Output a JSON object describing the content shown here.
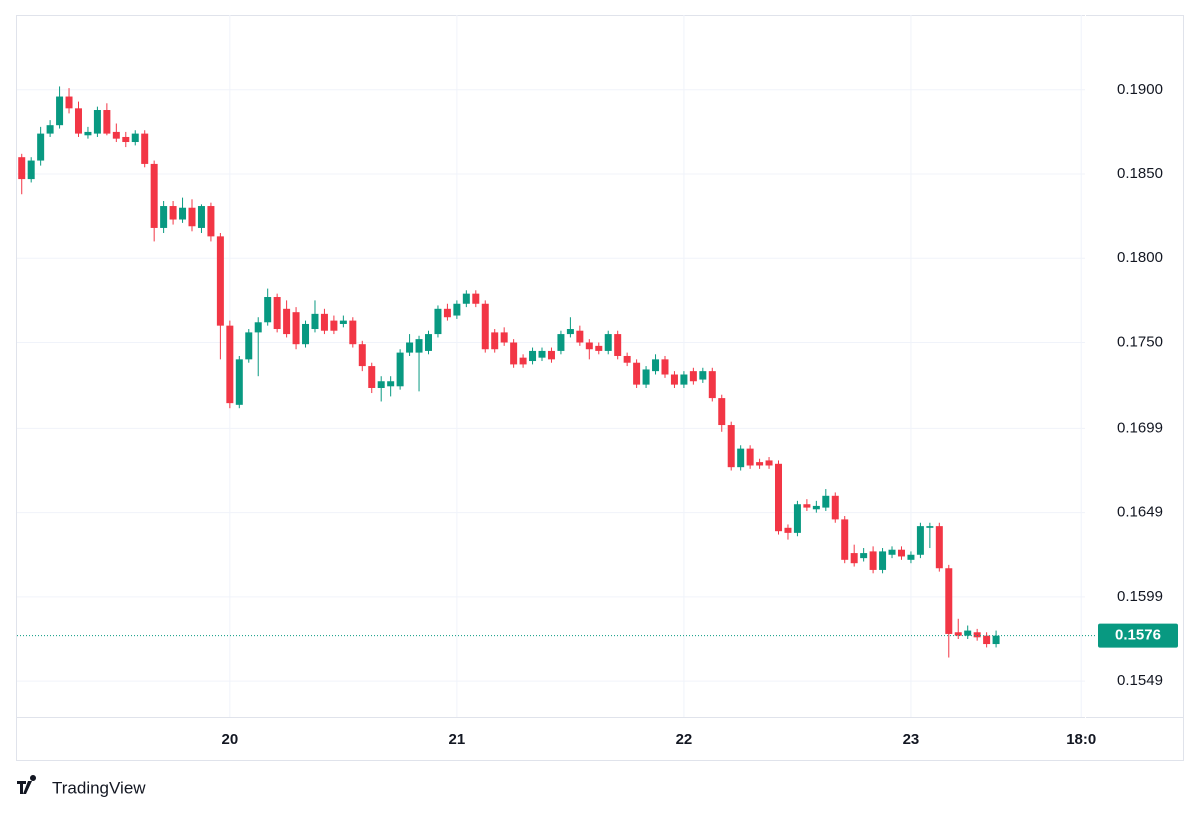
{
  "chart_data": {
    "type": "candlestick",
    "branding": "TradingView",
    "up_color": "#089981",
    "down_color": "#f23645",
    "grid": true,
    "x": [
      2,
      3,
      4,
      5,
      6,
      7,
      8,
      9,
      10,
      11,
      12,
      13,
      14,
      15,
      16,
      17,
      18,
      19,
      20,
      21,
      22,
      23,
      24,
      25,
      26,
      27,
      28,
      29,
      30,
      31,
      32,
      33,
      34,
      35,
      36,
      37,
      38,
      39,
      40,
      41,
      42,
      43,
      44,
      45,
      46,
      47,
      48,
      49,
      50,
      51,
      52,
      53,
      54,
      55,
      56,
      57,
      58,
      59,
      60,
      61,
      62,
      63,
      64,
      65,
      66,
      67,
      68,
      69,
      70,
      71,
      72,
      73,
      74,
      75,
      76,
      77,
      78,
      79,
      80,
      81,
      82,
      83,
      84,
      85,
      86,
      87,
      88,
      89,
      90,
      91,
      92,
      93,
      94,
      95,
      96,
      97,
      98,
      99,
      100,
      101,
      102,
      103,
      104,
      105
    ],
    "open": [
      0.186,
      0.1847,
      0.1858,
      0.1874,
      0.1879,
      0.1896,
      0.1889,
      0.1873,
      0.1874,
      0.1888,
      0.1875,
      0.1872,
      0.1869,
      0.1874,
      0.1856,
      0.1818,
      0.1831,
      0.1823,
      0.183,
      0.1818,
      0.1831,
      0.1813,
      0.176,
      0.1713,
      0.174,
      0.1756,
      0.1762,
      0.1777,
      0.177,
      0.1768,
      0.1749,
      0.1758,
      0.1767,
      0.1763,
      0.1761,
      0.1763,
      0.1749,
      0.1736,
      0.1723,
      0.1724,
      0.1724,
      0.1744,
      0.1744,
      0.1745,
      0.1755,
      0.177,
      0.1766,
      0.1773,
      0.1779,
      0.1773,
      0.1756,
      0.1756,
      0.175,
      0.1741,
      0.1739,
      0.1741,
      0.1745,
      0.1745,
      0.1755,
      0.1757,
      0.175,
      0.1748,
      0.1745,
      0.1755,
      0.1742,
      0.1738,
      0.1725,
      0.1733,
      0.174,
      0.1731,
      0.1725,
      0.1733,
      0.1728,
      0.1733,
      0.1717,
      0.1701,
      0.1676,
      0.1687,
      0.1679,
      0.168,
      0.1678,
      0.164,
      0.1637,
      0.1654,
      0.1651,
      0.1652,
      0.1659,
      0.1645,
      0.1625,
      0.1622,
      0.1626,
      0.1615,
      0.1624,
      0.1627,
      0.1621,
      0.1624,
      0.164,
      0.1641,
      0.1616,
      0.1578,
      0.1576,
      0.1578,
      0.1576,
      0.1571
    ],
    "high": [
      0.1862,
      0.186,
      0.1878,
      0.1882,
      0.1902,
      0.1901,
      0.1893,
      0.1878,
      0.189,
      0.1892,
      0.188,
      0.1875,
      0.1876,
      0.1876,
      0.1858,
      0.1834,
      0.1834,
      0.1836,
      0.1835,
      0.1832,
      0.1833,
      0.1815,
      0.1763,
      0.1742,
      0.1758,
      0.1765,
      0.1782,
      0.1779,
      0.1775,
      0.1771,
      0.1763,
      0.1775,
      0.177,
      0.1766,
      0.1766,
      0.1765,
      0.1751,
      0.1738,
      0.173,
      0.173,
      0.1746,
      0.1755,
      0.1754,
      0.1757,
      0.1772,
      0.1773,
      0.1775,
      0.1781,
      0.1781,
      0.1775,
      0.1758,
      0.1759,
      0.1752,
      0.1743,
      0.1747,
      0.1747,
      0.1747,
      0.1757,
      0.1765,
      0.176,
      0.1752,
      0.175,
      0.1757,
      0.1757,
      0.1744,
      0.174,
      0.1736,
      0.1743,
      0.1742,
      0.1733,
      0.1733,
      0.1735,
      0.1735,
      0.1735,
      0.1719,
      0.1703,
      0.1689,
      0.1689,
      0.1681,
      0.1682,
      0.168,
      0.1642,
      0.1656,
      0.1657,
      0.1656,
      0.1663,
      0.1661,
      0.1647,
      0.163,
      0.1628,
      0.1629,
      0.1628,
      0.1629,
      0.1629,
      0.1626,
      0.1643,
      0.1643,
      0.1643,
      0.1618,
      0.1586,
      0.1582,
      0.158,
      0.1578,
      0.1579
    ],
    "low": [
      0.1838,
      0.1845,
      0.1855,
      0.1872,
      0.1877,
      0.1886,
      0.1872,
      0.1871,
      0.1872,
      0.1873,
      0.1869,
      0.1866,
      0.1867,
      0.1854,
      0.181,
      0.1815,
      0.182,
      0.1821,
      0.1816,
      0.1815,
      0.181,
      0.174,
      0.1711,
      0.1711,
      0.1738,
      0.173,
      0.176,
      0.1756,
      0.1753,
      0.1746,
      0.1747,
      0.1756,
      0.1755,
      0.1755,
      0.1759,
      0.1747,
      0.1733,
      0.172,
      0.1715,
      0.1718,
      0.1722,
      0.1742,
      0.1721,
      0.1743,
      0.1753,
      0.1763,
      0.1764,
      0.1771,
      0.1771,
      0.1744,
      0.1744,
      0.1748,
      0.1735,
      0.1735,
      0.1737,
      0.1739,
      0.1738,
      0.1743,
      0.1753,
      0.1748,
      0.174,
      0.1743,
      0.1743,
      0.174,
      0.1736,
      0.1723,
      0.1723,
      0.1731,
      0.1729,
      0.1723,
      0.1723,
      0.1725,
      0.1726,
      0.1715,
      0.1697,
      0.1674,
      0.1674,
      0.1675,
      0.1675,
      0.1675,
      0.1636,
      0.1633,
      0.1635,
      0.165,
      0.1649,
      0.165,
      0.1643,
      0.1619,
      0.1617,
      0.162,
      0.1613,
      0.1613,
      0.1622,
      0.1621,
      0.1619,
      0.1622,
      0.1628,
      0.1614,
      0.1563,
      0.1574,
      0.1574,
      0.1573,
      0.1569,
      0.1569
    ],
    "close": [
      0.1847,
      0.1858,
      0.1874,
      0.1879,
      0.1896,
      0.1889,
      0.1874,
      0.1875,
      0.1888,
      0.1874,
      0.1871,
      0.1869,
      0.1874,
      0.1856,
      0.1818,
      0.1831,
      0.1823,
      0.183,
      0.1819,
      0.1831,
      0.1813,
      0.176,
      0.1714,
      0.174,
      0.1756,
      0.1762,
      0.1777,
      0.1758,
      0.1755,
      0.1749,
      0.1761,
      0.1767,
      0.1757,
      0.1757,
      0.1763,
      0.1749,
      0.1736,
      0.1723,
      0.1727,
      0.1727,
      0.1744,
      0.175,
      0.1752,
      0.1755,
      0.177,
      0.1765,
      0.1773,
      0.1779,
      0.1773,
      0.1746,
      0.1746,
      0.175,
      0.1737,
      0.1737,
      0.1745,
      0.1745,
      0.174,
      0.1755,
      0.1758,
      0.175,
      0.1746,
      0.1745,
      0.1755,
      0.1742,
      0.1738,
      0.1725,
      0.1734,
      0.174,
      0.1731,
      0.1725,
      0.1731,
      0.1727,
      0.1733,
      0.1717,
      0.1701,
      0.1676,
      0.1687,
      0.1677,
      0.1677,
      0.1677,
      0.1638,
      0.1637,
      0.1654,
      0.1652,
      0.1653,
      0.1659,
      0.1645,
      0.1621,
      0.1619,
      0.1625,
      0.1615,
      0.1626,
      0.1627,
      0.1623,
      0.1624,
      0.1641,
      0.1641,
      0.1616,
      0.1577,
      0.1576,
      0.1579,
      0.1575,
      0.1571,
      0.1576
    ],
    "xlim": [
      1.5,
      114.4
    ],
    "xticks": [
      {
        "value": 24,
        "label": "20"
      },
      {
        "value": 48,
        "label": "21"
      },
      {
        "value": 72,
        "label": "22"
      },
      {
        "value": 96,
        "label": "23"
      },
      {
        "value": 114,
        "label": "18:0"
      }
    ],
    "ylim": [
      0.15277,
      0.19444
    ],
    "yticks": [
      {
        "value": 0.19,
        "label": "0.1900"
      },
      {
        "value": 0.185,
        "label": "0.1850"
      },
      {
        "value": 0.18,
        "label": "0.1800"
      },
      {
        "value": 0.175,
        "label": "0.1750"
      },
      {
        "value": 0.1699,
        "label": "0.1699"
      },
      {
        "value": 0.1649,
        "label": "0.1649"
      },
      {
        "value": 0.1599,
        "label": "0.1599"
      },
      {
        "value": 0.1549,
        "label": "0.1549"
      }
    ],
    "last_price": {
      "value": 0.1576,
      "label": "0.1576"
    }
  }
}
